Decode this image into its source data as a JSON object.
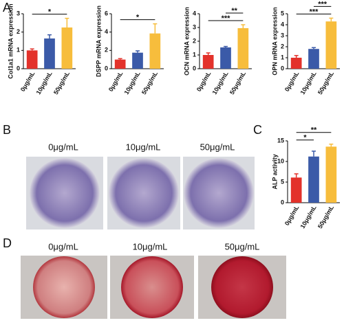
{
  "panels": {
    "A": "A",
    "B": "B",
    "C": "C",
    "D": "D"
  },
  "images": {
    "B": {
      "captions": [
        "0μg/mL",
        "10μg/mL",
        "50μg/mL"
      ]
    },
    "D": {
      "captions": [
        "0μg/mL",
        "10μg/mL",
        "50μg/mL"
      ]
    }
  },
  "chart_data": [
    {
      "type": "bar",
      "y_label": "Col1a1 mRNA expression",
      "categories": [
        "0μg/mL",
        "10μg/mL",
        "50μg/mL"
      ],
      "values": [
        1.0,
        1.65,
        2.25
      ],
      "errors": [
        0.08,
        0.2,
        0.5
      ],
      "colors": [
        "#e3322b",
        "#3b5aa8",
        "#f7bd3c"
      ],
      "ylim": [
        0,
        3
      ],
      "yticks": [
        0,
        1,
        2,
        3
      ],
      "annotations": [
        {
          "label": "*",
          "between": [
            "0μg/mL",
            "50μg/mL"
          ]
        }
      ]
    },
    {
      "type": "bar",
      "y_label": "DSPP mRNA expression",
      "categories": [
        "0μg/mL",
        "10μg/mL",
        "50μg/mL"
      ],
      "values": [
        1.0,
        1.75,
        3.85
      ],
      "errors": [
        0.1,
        0.2,
        1.05
      ],
      "colors": [
        "#e3322b",
        "#3b5aa8",
        "#f7bd3c"
      ],
      "ylim": [
        0,
        6
      ],
      "yticks": [
        0,
        2,
        4,
        6
      ],
      "annotations": [
        {
          "label": "*",
          "between": [
            "0μg/mL",
            "50μg/mL"
          ]
        }
      ]
    },
    {
      "type": "bar",
      "y_label": "OCN mRNA expression",
      "categories": [
        "0μg/mL",
        "10μg/mL",
        "50μg/mL"
      ],
      "values": [
        1.0,
        1.55,
        2.95
      ],
      "errors": [
        0.15,
        0.07,
        0.25
      ],
      "colors": [
        "#e3322b",
        "#3b5aa8",
        "#f7bd3c"
      ],
      "ylim": [
        0,
        4
      ],
      "yticks": [
        0,
        1,
        2,
        3,
        4
      ],
      "annotations": [
        {
          "label": "***",
          "between": [
            "0μg/mL",
            "50μg/mL"
          ]
        },
        {
          "label": "**",
          "between": [
            "10μg/mL",
            "50μg/mL"
          ]
        }
      ]
    },
    {
      "type": "bar",
      "y_label": "OPN mRNA expression",
      "categories": [
        "0μg/mL",
        "10μg/mL",
        "50μg/mL"
      ],
      "values": [
        1.0,
        1.8,
        4.3
      ],
      "errors": [
        0.2,
        0.12,
        0.3
      ],
      "colors": [
        "#e3322b",
        "#3b5aa8",
        "#f7bd3c"
      ],
      "ylim": [
        0,
        5
      ],
      "yticks": [
        0,
        1,
        2,
        3,
        4,
        5
      ],
      "annotations": [
        {
          "label": "***",
          "between": [
            "0μg/mL",
            "50μg/mL"
          ]
        },
        {
          "label": "***",
          "between": [
            "10μg/mL",
            "50μg/mL"
          ]
        }
      ]
    },
    {
      "type": "bar",
      "y_label": "ALP activity",
      "categories": [
        "0μg/mL",
        "10μg/mL",
        "50μg/mL"
      ],
      "values": [
        6.1,
        11.2,
        13.6
      ],
      "errors": [
        0.9,
        1.3,
        0.6
      ],
      "colors": [
        "#e3322b",
        "#3b5aa8",
        "#f7bd3c"
      ],
      "ylim": [
        0,
        15
      ],
      "yticks": [
        0,
        5,
        10,
        15
      ],
      "annotations": [
        {
          "label": "*",
          "between": [
            "0μg/mL",
            "10μg/mL"
          ]
        },
        {
          "label": "**",
          "between": [
            "0μg/mL",
            "50μg/mL"
          ]
        }
      ]
    }
  ]
}
